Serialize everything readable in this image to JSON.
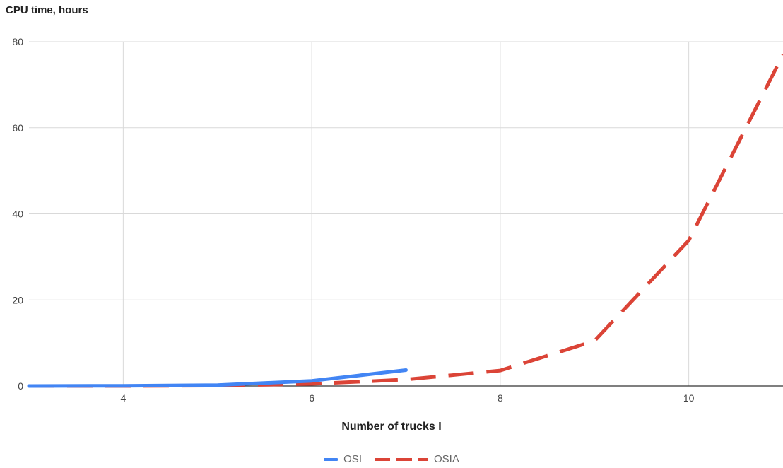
{
  "chart_data": {
    "type": "line",
    "xlabel": "Number of trucks I",
    "ylabel": "CPU time, hours",
    "xlim": [
      3,
      11
    ],
    "ylim": [
      0,
      80
    ],
    "x_ticks": [
      "4",
      "6",
      "8",
      "10"
    ],
    "y_ticks": [
      "0",
      "20",
      "40",
      "60",
      "80"
    ],
    "grid": true,
    "legend_position": "bottom",
    "series": [
      {
        "name": "OSI",
        "color": "#4285F4",
        "style": "solid",
        "x": [
          3,
          4,
          5,
          6,
          7
        ],
        "y": [
          0,
          0.05,
          0.2,
          1.2,
          3.7
        ]
      },
      {
        "name": "OSIA",
        "color": "#DB4437",
        "style": "dashed",
        "x": [
          3,
          4,
          5,
          6,
          7,
          8,
          9,
          10,
          11
        ],
        "y": [
          0,
          0,
          0.1,
          0.5,
          1.5,
          3.6,
          10.5,
          33.8,
          77
        ]
      }
    ]
  }
}
